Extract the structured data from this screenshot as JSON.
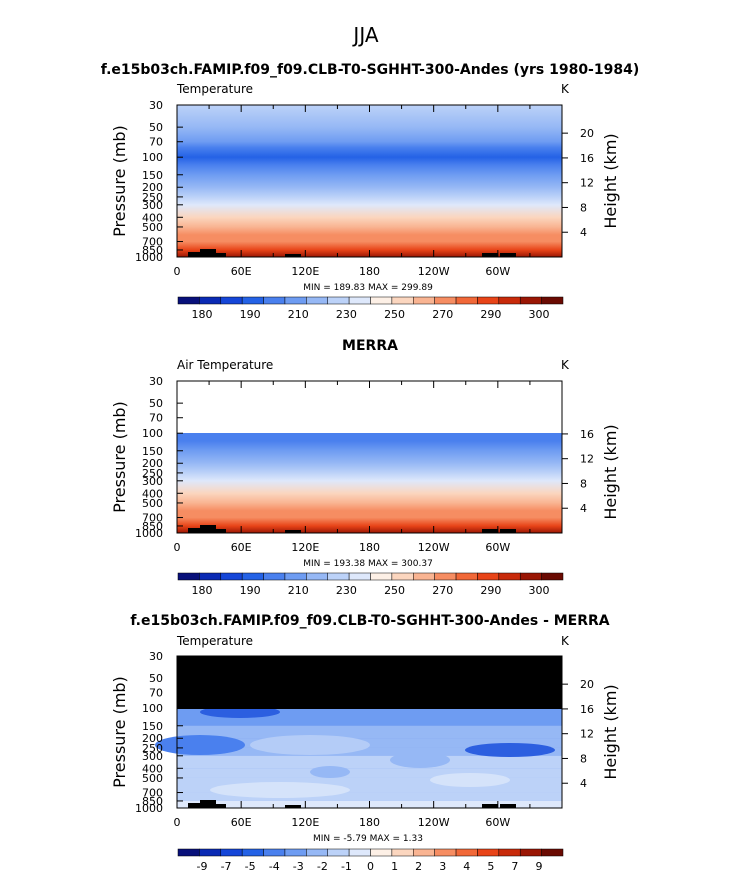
{
  "page": {
    "season": "JJA"
  },
  "colors": {
    "temp_palette": [
      "#08107a",
      "#0a2ab4",
      "#1546d8",
      "#2462e6",
      "#4a80ee",
      "#6e9cf2",
      "#96b8f5",
      "#bcd2f8",
      "#dee8fb",
      "#fdf0e6",
      "#fbd6bf",
      "#f9b492",
      "#f68d62",
      "#f16838",
      "#e84418",
      "#c82a0a",
      "#9a1604",
      "#6a0a02"
    ],
    "diff_palette": [
      "#08107a",
      "#0a2ab4",
      "#1546d8",
      "#2462e6",
      "#4a80ee",
      "#6e9cf2",
      "#96b8f5",
      "#bcd2f8",
      "#dee8fb",
      "#fdf0e6",
      "#fbd6bf",
      "#f9b492",
      "#f68d62",
      "#f16838",
      "#e84418",
      "#c82a0a",
      "#9a1604",
      "#6a0a02"
    ],
    "missing": "#000000"
  },
  "chart_data": [
    {
      "type": "heatmap",
      "panel_title": "f.e15b03ch.FAMIP.f09_f09.CLB-T0-SGHHT-300-Andes (yrs 1980-1984)",
      "field_label": "Temperature",
      "units": "K",
      "ylabel": "Pressure (mb)",
      "y2label": "Height (km)",
      "xticks": [
        "0",
        "60E",
        "120E",
        "180",
        "120W",
        "60W"
      ],
      "yticks": [
        "30",
        "50",
        "70",
        "100",
        "150",
        "200",
        "250",
        "300",
        "400",
        "500",
        "700",
        "850",
        "1000"
      ],
      "y2ticks": [
        "20",
        "16",
        "12",
        "8",
        "4"
      ],
      "stats": "MIN = 189.83   MAX = 299.89",
      "colorbar_labels": [
        "180",
        "190",
        "210",
        "230",
        "250",
        "270",
        "290",
        "300"
      ],
      "top_pressure": 30,
      "profile": [
        {
          "p": 30,
          "v": 221
        },
        {
          "p": 50,
          "v": 214
        },
        {
          "p": 70,
          "v": 206
        },
        {
          "p": 80,
          "v": 196
        },
        {
          "p": 100,
          "v": 193
        },
        {
          "p": 120,
          "v": 196
        },
        {
          "p": 150,
          "v": 205
        },
        {
          "p": 200,
          "v": 217
        },
        {
          "p": 250,
          "v": 227
        },
        {
          "p": 300,
          "v": 236
        },
        {
          "p": 400,
          "v": 251
        },
        {
          "p": 500,
          "v": 262
        },
        {
          "p": 600,
          "v": 271
        },
        {
          "p": 700,
          "v": 278
        },
        {
          "p": 850,
          "v": 287
        },
        {
          "p": 1000,
          "v": 297
        }
      ]
    },
    {
      "type": "heatmap",
      "panel_title": "MERRA",
      "field_label": "Air Temperature",
      "units": "K",
      "ylabel": "Pressure (mb)",
      "y2label": "Height (km)",
      "xticks": [
        "0",
        "60E",
        "120E",
        "180",
        "120W",
        "60W"
      ],
      "yticks": [
        "30",
        "50",
        "70",
        "100",
        "150",
        "200",
        "250",
        "300",
        "400",
        "500",
        "700",
        "850",
        "1000"
      ],
      "y2ticks": [
        "16",
        "12",
        "8",
        "4"
      ],
      "stats": "MIN = 193.38   MAX = 300.37",
      "colorbar_labels": [
        "180",
        "190",
        "210",
        "230",
        "250",
        "270",
        "290",
        "300"
      ],
      "top_pressure": 100,
      "profile": [
        {
          "p": 100,
          "v": 195
        },
        {
          "p": 120,
          "v": 197
        },
        {
          "p": 150,
          "v": 206
        },
        {
          "p": 200,
          "v": 218
        },
        {
          "p": 250,
          "v": 228
        },
        {
          "p": 300,
          "v": 237
        },
        {
          "p": 400,
          "v": 252
        },
        {
          "p": 500,
          "v": 263
        },
        {
          "p": 600,
          "v": 272
        },
        {
          "p": 700,
          "v": 279
        },
        {
          "p": 850,
          "v": 288
        },
        {
          "p": 1000,
          "v": 298
        }
      ]
    },
    {
      "type": "heatmap",
      "panel_title": "f.e15b03ch.FAMIP.f09_f09.CLB-T0-SGHHT-300-Andes - MERRA",
      "field_label": "Temperature",
      "units": "K",
      "ylabel": "Pressure (mb)",
      "y2label": "Height (km)",
      "xticks": [
        "0",
        "60E",
        "120E",
        "180",
        "120W",
        "60W"
      ],
      "yticks": [
        "30",
        "50",
        "70",
        "100",
        "150",
        "200",
        "250",
        "300",
        "400",
        "500",
        "700",
        "850",
        "1000"
      ],
      "y2ticks": [
        "20",
        "16",
        "12",
        "8",
        "4"
      ],
      "stats": "MIN =  -5.79   MAX =    1.33",
      "colorbar_labels": [
        "-9",
        "-7",
        "-5",
        "-4",
        "-3",
        "-2",
        "-1",
        "0",
        "1",
        "2",
        "3",
        "4",
        "5",
        "7",
        "9"
      ],
      "missing_above_pressure": 100,
      "profile": [
        {
          "p": 100,
          "v": -2.2
        },
        {
          "p": 150,
          "v": -2.0
        },
        {
          "p": 200,
          "v": -1.6
        },
        {
          "p": 250,
          "v": -1.8
        },
        {
          "p": 300,
          "v": -1.5
        },
        {
          "p": 400,
          "v": -1.3
        },
        {
          "p": 500,
          "v": -1.5
        },
        {
          "p": 700,
          "v": -1.2
        },
        {
          "p": 850,
          "v": -0.6
        },
        {
          "p": 1000,
          "v": -0.4
        }
      ]
    }
  ]
}
